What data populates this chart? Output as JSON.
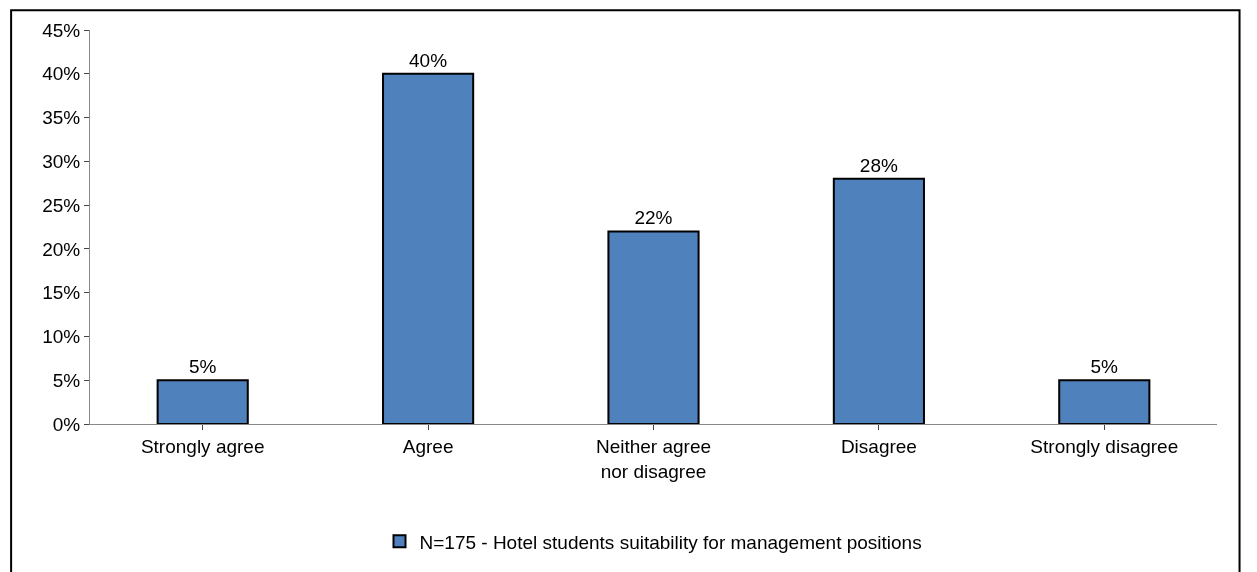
{
  "chart_data": {
    "type": "bar",
    "categories": [
      "Strongly agree",
      "Agree",
      "Neither agree nor disagree",
      "Disagree",
      "Strongly disagree"
    ],
    "series": [
      {
        "name": "N=175 - Hotel students suitability for management positions",
        "color": "#4f81bd",
        "values": [
          5,
          40,
          22,
          28,
          5
        ],
        "value_labels": [
          "5%",
          "40%",
          "22%",
          "28%",
          "5%"
        ]
      }
    ],
    "ylim": [
      0,
      45
    ],
    "yticks": [
      {
        "value": 0,
        "label": "0%"
      },
      {
        "value": 5,
        "label": "5%"
      },
      {
        "value": 10,
        "label": "10%"
      },
      {
        "value": 15,
        "label": "15%"
      },
      {
        "value": 20,
        "label": "20%"
      },
      {
        "value": 25,
        "label": "25%"
      },
      {
        "value": 30,
        "label": "30%"
      },
      {
        "value": 35,
        "label": "35%"
      },
      {
        "value": 40,
        "label": "40%"
      },
      {
        "value": 45,
        "label": "45%"
      }
    ],
    "legend": "bottom"
  }
}
